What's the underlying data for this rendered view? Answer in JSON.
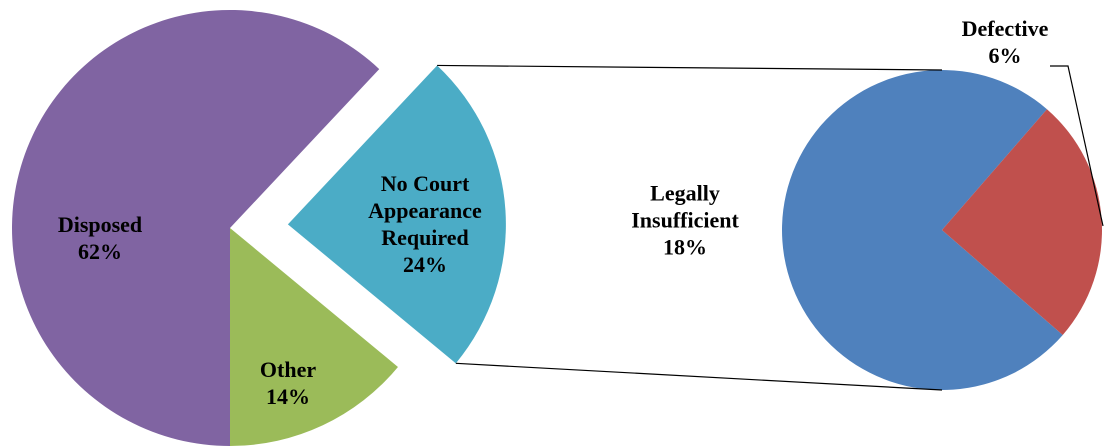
{
  "chart_data": {
    "type": "pie",
    "categories": [
      "Disposed",
      "No Court Appearance Required",
      "Other"
    ],
    "values": [
      62,
      24,
      14
    ],
    "value_labels": [
      "62%",
      "24%",
      "14%"
    ],
    "colors": [
      "#8064a2",
      "#4bacc6",
      "#9bbb59"
    ],
    "secondary": {
      "categories": [
        "Legally Insufficient",
        "Defective"
      ],
      "values": [
        18,
        6
      ],
      "value_labels": [
        "18%",
        "6%"
      ],
      "colors": [
        "#4f81bd",
        "#c0504d"
      ]
    }
  }
}
